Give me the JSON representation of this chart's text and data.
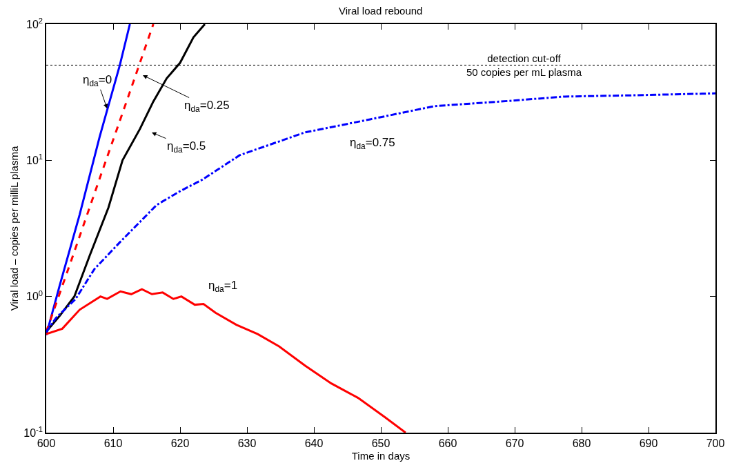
{
  "chart_data": {
    "type": "line",
    "title": "Viral load rebound",
    "xlabel": "Time in days",
    "ylabel": "Viral load – copies per milliL plasma",
    "log": "y",
    "grid": false,
    "marker": "none",
    "xlim": [
      600,
      700
    ],
    "xticks": [
      600,
      610,
      620,
      630,
      640,
      650,
      660,
      670,
      680,
      690,
      700
    ],
    "ylim": [
      0.1,
      100
    ],
    "yticks": [
      {
        "value": 0.1,
        "label": "10$^{-1}$"
      },
      {
        "value": 1,
        "label": "10$^{0}$"
      },
      {
        "value": 10,
        "label": "10$^{1}$"
      },
      {
        "value": 100,
        "label": "10$^{2}$"
      }
    ],
    "series": [
      {
        "color": "#0000ff",
        "line_style": "solid",
        "x": [
          600,
          602,
          605,
          608,
          611,
          612.5
        ],
        "values": [
          0.52,
          1.2,
          4,
          15,
          50,
          100
        ]
      },
      {
        "color": "#ff0000",
        "line_style": "dashed",
        "x": [
          600,
          604,
          608,
          612,
          614,
          616
        ],
        "values": [
          0.55,
          2.0,
          7.4,
          27,
          52,
          100
        ]
      },
      {
        "color": "#000000",
        "line_style": "solid",
        "x": [
          600,
          602,
          604.2,
          606.5,
          609.3,
          611.4,
          614,
          616,
          618,
          620,
          622,
          623.7
        ],
        "values": [
          0.55,
          0.72,
          1.0,
          2,
          4.5,
          10,
          17,
          27,
          40,
          52,
          80,
          100
        ]
      },
      {
        "color": "#0000ff",
        "line_style": "dashdot",
        "x": [
          600,
          601.5,
          604.4,
          607.2,
          611,
          616.5,
          619.9,
          623.3,
          628.9,
          638.6,
          648.4,
          658,
          667.8,
          677.5,
          687.2,
          700
        ],
        "values": [
          0.55,
          0.7,
          0.96,
          1.59,
          2.5,
          4.7,
          5.9,
          7.2,
          10.9,
          16,
          20,
          25,
          27,
          29.4,
          30,
          31
        ]
      },
      {
        "color": "#ff0000",
        "line_style": "solid",
        "x": [
          600,
          602.4,
          605,
          608.1,
          609.1,
          611.1,
          612.7,
          614.3,
          615.8,
          617.4,
          619,
          620.2,
          622.2,
          623.5,
          625.3,
          628.4,
          631.6,
          634.8,
          638.7,
          642.6,
          646.6,
          650.6,
          653.7
        ],
        "values": [
          0.53,
          0.58,
          0.8,
          1.0,
          0.96,
          1.09,
          1.04,
          1.13,
          1.04,
          1.07,
          0.96,
          1.0,
          0.87,
          0.88,
          0.76,
          0.62,
          0.53,
          0.43,
          0.31,
          0.23,
          0.18,
          0.13,
          0.1
        ]
      }
    ],
    "ref_lines": [
      {
        "axis": "y",
        "value": 50,
        "label": "detection cut-off\n50 copies per mL plasma",
        "color": "#000000",
        "line_style": "dotted"
      }
    ],
    "annotations": [
      {
        "text": "η$_{da}$=0",
        "x": 609.1,
        "y": 24
      },
      "η$_{da}$=0.25",
      "η$_{da}$=0.5",
      "η$_{da}$=0.75",
      "η$_{da}$=1"
    ]
  }
}
